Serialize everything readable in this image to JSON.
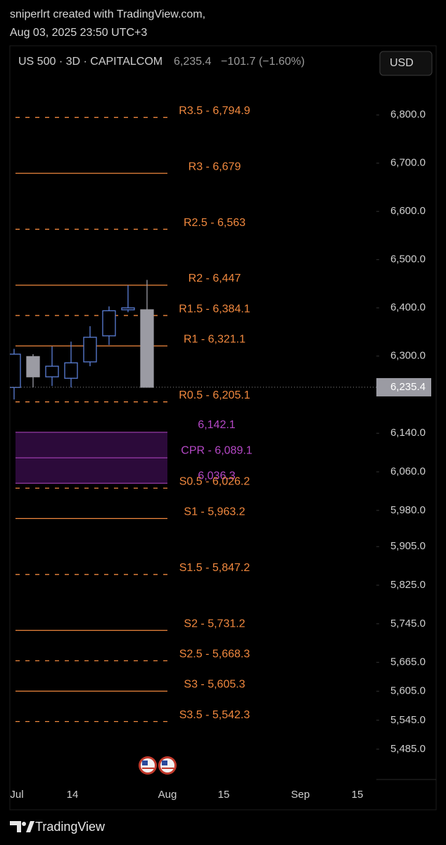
{
  "header": {
    "author": "sniperlrt created with TradingView.com,",
    "date": "Aug 03, 2025 23:50 UTC+3"
  },
  "footer": {
    "brand": "TradingView"
  },
  "chart_data": {
    "type": "candlestick",
    "symbol": "US 500 · 3D · CAPITALCOM",
    "last": {
      "value": 6235.4,
      "label": "6,235.4"
    },
    "change": "−101.7 (−1.60%)",
    "currency": "USD",
    "up_color": "#5b7fd6",
    "down_color": "#9b9ba3",
    "candles": {
      "open": [
        6235,
        6299,
        6257,
        6254,
        6288,
        6342,
        6396,
        6396
      ],
      "high": [
        6315,
        6304,
        6320,
        6330,
        6362,
        6403,
        6447,
        6458
      ],
      "low": [
        6210,
        6235,
        6238,
        6235,
        6279,
        6323,
        6391,
        6242
      ],
      "close": [
        6304,
        6257,
        6279,
        6286,
        6339,
        6394,
        6400,
        6235.4
      ]
    },
    "pivot_color": "#f0883e",
    "pivots": [
      {
        "label": "R3.5 - 6,794.9",
        "value": 6794.9,
        "style": "dashed"
      },
      {
        "label": "R3 - 6,679",
        "value": 6679,
        "style": "solid"
      },
      {
        "label": "R2.5 - 6,563",
        "value": 6563,
        "style": "dashed"
      },
      {
        "label": "R2 - 6,447",
        "value": 6447,
        "style": "solid"
      },
      {
        "label": "R1.5 - 6,384.1",
        "value": 6384.1,
        "style": "dashed"
      },
      {
        "label": "R1 - 6,321.1",
        "value": 6321.1,
        "style": "solid"
      },
      {
        "label": "R0.5 - 6,205.1",
        "value": 6205.1,
        "style": "dashed"
      },
      {
        "label": "S0.5 - 6,026.2",
        "value": 6026.2,
        "style": "dashed"
      },
      {
        "label": "S1 - 5,963.2",
        "value": 5963.2,
        "style": "solid"
      },
      {
        "label": "S1.5 - 5,847.2",
        "value": 5847.2,
        "style": "dashed"
      },
      {
        "label": "S2 - 5,731.2",
        "value": 5731.2,
        "style": "solid"
      },
      {
        "label": "S2.5 - 5,668.3",
        "value": 5668.3,
        "style": "dashed"
      },
      {
        "label": "S3 - 5,605.3",
        "value": 5605.3,
        "style": "solid"
      },
      {
        "label": "S3.5 - 5,542.3",
        "value": 5542.3,
        "style": "dashed"
      }
    ],
    "cpr": {
      "color": "#b548c6",
      "fill": "#2c0a3a",
      "levels": [
        {
          "label": "6,142.1",
          "value": 6142.1
        },
        {
          "label": "CPR - 6,089.1",
          "value": 6089.1
        },
        {
          "label": "6,036.3",
          "value": 6036.3
        }
      ]
    },
    "x_labels": [
      "Jul",
      "14",
      "Aug",
      "15",
      "Sep",
      "15"
    ],
    "ylim": [
      5425,
      6885
    ],
    "yticks": [
      {
        "value": 6800,
        "label": "6,800.0"
      },
      {
        "value": 6700,
        "label": "6,700.0"
      },
      {
        "value": 6600,
        "label": "6,600.0"
      },
      {
        "value": 6500,
        "label": "6,500.0"
      },
      {
        "value": 6400,
        "label": "6,400.0"
      },
      {
        "value": 6300,
        "label": "6,300.0"
      },
      {
        "value": 6140,
        "label": "6,140.0"
      },
      {
        "value": 6060,
        "label": "6,060.0"
      },
      {
        "value": 5980,
        "label": "5,980.0"
      },
      {
        "value": 5905,
        "label": "5,905.0"
      },
      {
        "value": 5825,
        "label": "5,825.0"
      },
      {
        "value": 5745,
        "label": "5,745.0"
      },
      {
        "value": 5665,
        "label": "5,665.0"
      },
      {
        "value": 5605,
        "label": "5,605.0"
      },
      {
        "value": 5545,
        "label": "5,545.0"
      },
      {
        "value": 5485,
        "label": "5,485.0"
      }
    ]
  }
}
